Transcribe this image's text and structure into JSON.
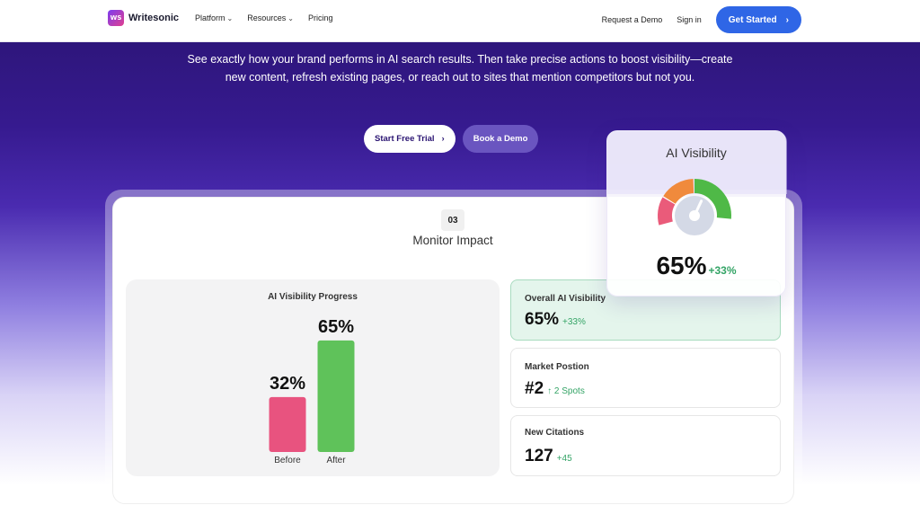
{
  "nav": {
    "logo_mark": "WS",
    "brand": "Writesonic",
    "links": [
      {
        "label": "Platform",
        "has_dropdown": true
      },
      {
        "label": "Resources",
        "has_dropdown": true
      },
      {
        "label": "Pricing",
        "has_dropdown": false
      }
    ],
    "request_demo": "Request a Demo",
    "sign_in": "Sign in",
    "get_started": "Get Started"
  },
  "hero": {
    "description": "See exactly how your brand performs in AI search results. Then take precise actions to boost visibility—create new content, refresh existing pages, or reach out to sites that mention competitors but not you.",
    "primary_cta": "Start Free Trial",
    "secondary_cta": "Book a Demo"
  },
  "step": {
    "number": "03",
    "title": "Monitor Impact"
  },
  "progress_chart": {
    "title": "AI Visibility Progress",
    "bars": [
      {
        "label": "Before",
        "value": 32,
        "display": "32%",
        "color": "#e8537f"
      },
      {
        "label": "After",
        "value": 65,
        "display": "65%",
        "color": "#5fc25a"
      }
    ]
  },
  "metrics": [
    {
      "label": "Overall AI Visibility",
      "value": "65%",
      "delta": "+33%",
      "highlight": true
    },
    {
      "label": "Market Postion",
      "value": "#2",
      "delta": "2 Spots",
      "delta_icon": "arrow-up-icon",
      "highlight": false
    },
    {
      "label": "New Citations",
      "value": "127",
      "delta": "+45",
      "highlight": false
    }
  ],
  "visibility_card": {
    "title": "AI Visibility",
    "value": "65%",
    "delta": "+33%",
    "gauge_level": 0.65,
    "colors": {
      "low": "#ea5b7a",
      "mid": "#f08a3c",
      "high": "#4fb947",
      "hub": "#d4d9e6"
    }
  }
}
